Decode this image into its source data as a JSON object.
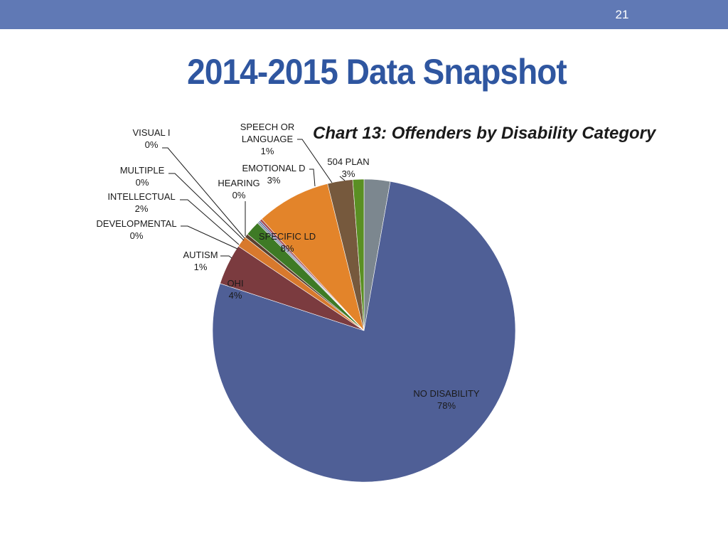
{
  "slide": {
    "page_number": "21",
    "title": "2014-2015 Data Snapshot"
  },
  "colors": {
    "header_bar": "#6079b5",
    "title": "#2f56a0"
  },
  "chart_data": {
    "type": "pie",
    "title": "Chart 13: Offenders by Disability Category",
    "slices": [
      {
        "name": "504 PLAN",
        "label": "3%",
        "value": 2.8,
        "color": "#7c878f"
      },
      {
        "name": "NO DISABILITY",
        "label": "78%",
        "value": 77.8,
        "color": "#4f5f96"
      },
      {
        "name": "OHI",
        "label": "4%",
        "value": 4.4,
        "color": "#7b3b3f"
      },
      {
        "name": "AUTISM",
        "label": "1%",
        "value": 1.2,
        "color": "#d8792d"
      },
      {
        "name": "DEVELOPMENTAL",
        "label": "0%",
        "value": 0.4,
        "color": "#5a4130"
      },
      {
        "name": "INTELLECTUAL",
        "label": "2%",
        "value": 1.6,
        "color": "#3e7a25"
      },
      {
        "name": "MULTIPLE",
        "label": "0%",
        "value": 0.2,
        "color": "#8892a6"
      },
      {
        "name": "VISUAL I",
        "label": "0%",
        "value": 0.15,
        "color": "#44559a"
      },
      {
        "name": "HEARING",
        "label": "0%",
        "value": 0.25,
        "color": "#a54c52"
      },
      {
        "name": "SPECIFIC LD",
        "label": "8%",
        "value": 8.0,
        "color": "#e3842a"
      },
      {
        "name": "EMOTIONAL D",
        "label": "3%",
        "value": 2.7,
        "color": "#76593d"
      },
      {
        "name": "SPEECH OR LANGUAGE",
        "label": "1%",
        "value": 1.2,
        "color": "#5a8f23"
      }
    ],
    "data_labels": [
      {
        "lines": [
          "504 PLAN",
          "3%"
        ]
      },
      {
        "lines": [
          "NO DISABILITY",
          "78%"
        ]
      },
      {
        "lines": [
          "OHI",
          "4%"
        ]
      },
      {
        "lines": [
          "AUTISM",
          "1%"
        ]
      },
      {
        "lines": [
          "DEVELOPMENTAL",
          "0%"
        ]
      },
      {
        "lines": [
          "INTELLECTUAL",
          "2%"
        ]
      },
      {
        "lines": [
          "MULTIPLE",
          "0%"
        ]
      },
      {
        "lines": [
          "VISUAL I",
          "0%"
        ]
      },
      {
        "lines": [
          "HEARING",
          "0%"
        ]
      },
      {
        "lines": [
          "SPECIFIC LD",
          "8%"
        ]
      },
      {
        "lines": [
          "EMOTIONAL D",
          "3%"
        ]
      },
      {
        "lines": [
          "SPEECH OR",
          "LANGUAGE",
          "1%"
        ]
      }
    ],
    "legend": "none"
  }
}
